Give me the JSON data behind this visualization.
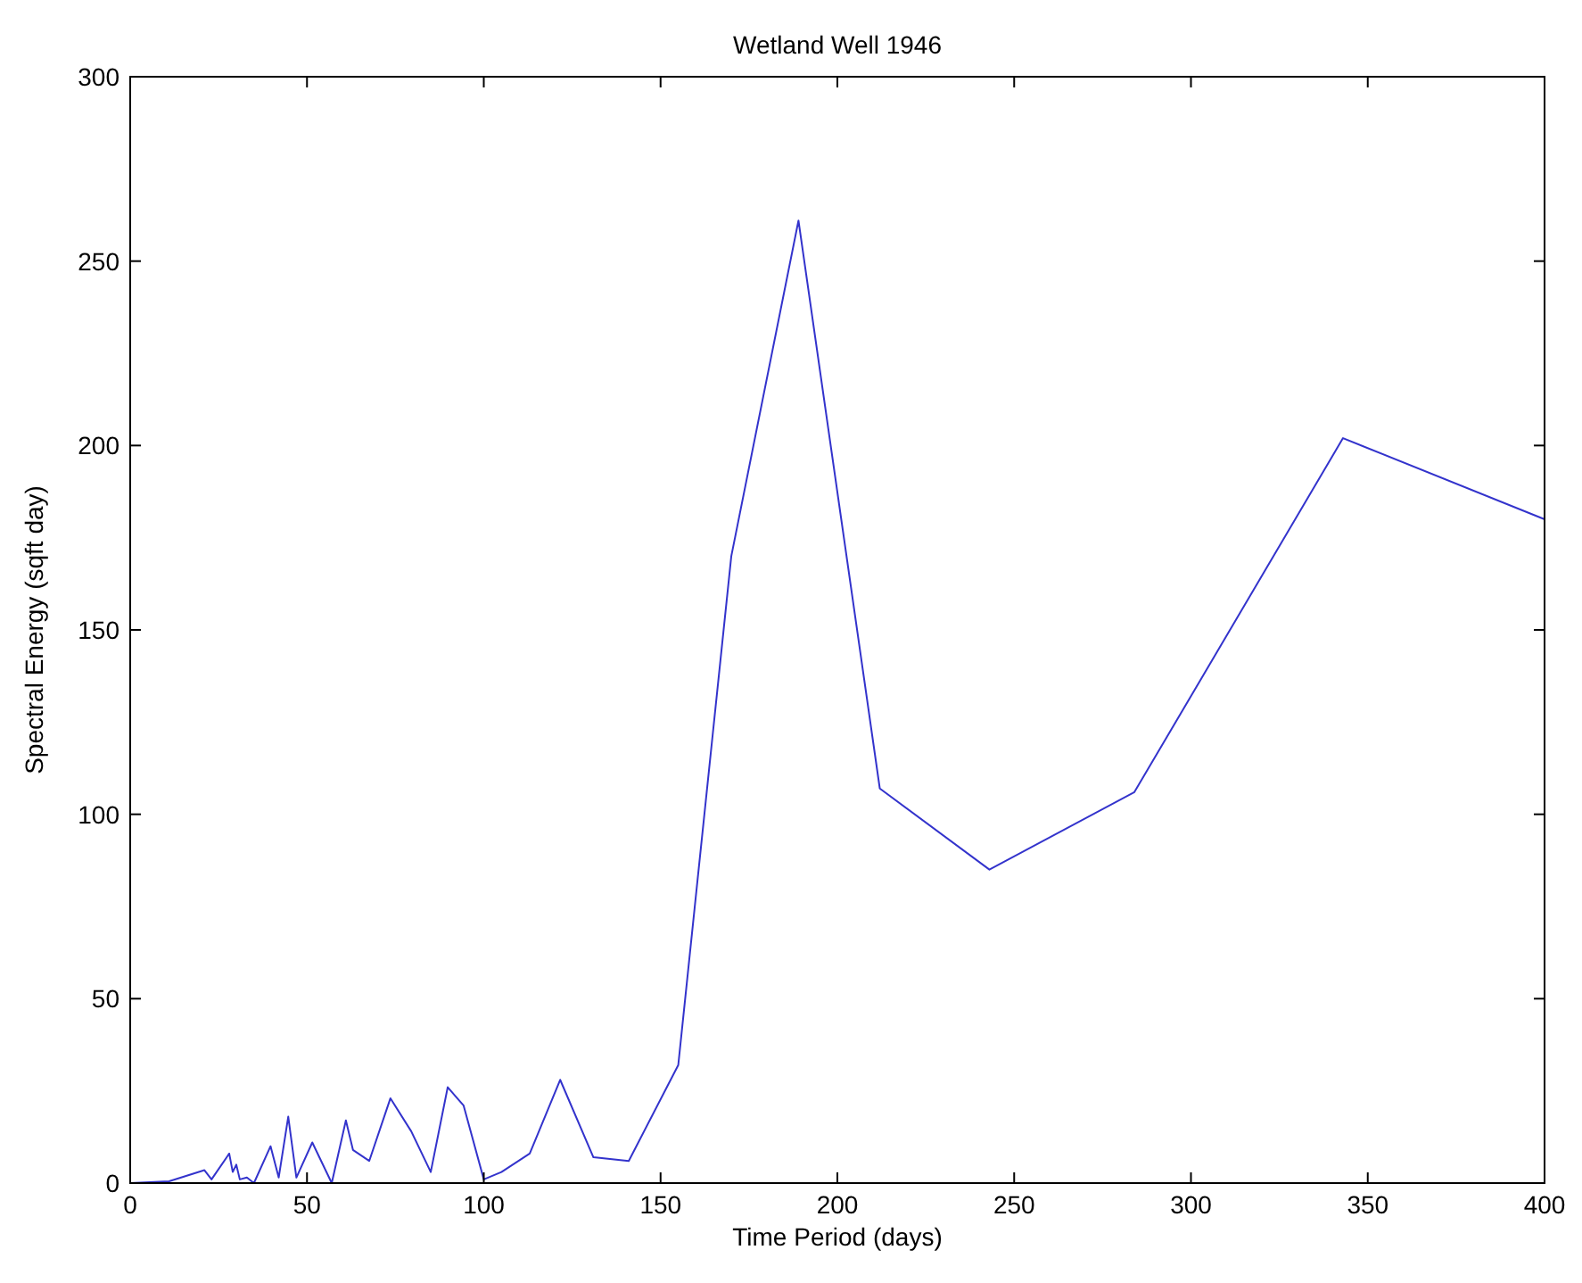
{
  "chart_data": {
    "type": "line",
    "title": "Wetland Well 1946",
    "xlabel": "Time Period (days)",
    "ylabel": "Spectral Energy (sqft day)",
    "xlim": [
      0,
      400
    ],
    "ylim": [
      0,
      300
    ],
    "xticks": [
      0,
      50,
      100,
      150,
      200,
      250,
      300,
      350,
      400
    ],
    "yticks": [
      0,
      50,
      100,
      150,
      200,
      250,
      300
    ],
    "grid": false,
    "series": [
      {
        "color": "#3333cc",
        "x": [
          0,
          11,
          16,
          21,
          23,
          28,
          29,
          30,
          31,
          33,
          35,
          39.7,
          42,
          44.7,
          47,
          51.5,
          57,
          61,
          63,
          67.6,
          73.6,
          79.5,
          85,
          89.8,
          94.3,
          100,
          105,
          113,
          121.6,
          131,
          141,
          155,
          170,
          189,
          212,
          243,
          284,
          343,
          400
        ],
        "values": [
          0,
          0.5,
          2,
          3.5,
          1,
          8,
          3,
          5,
          1,
          1.5,
          0,
          10,
          1.5,
          18,
          1.5,
          11,
          0,
          17,
          9,
          6,
          23,
          14,
          3,
          26,
          21,
          1,
          3,
          8,
          28,
          7,
          6,
          32,
          170,
          261,
          107,
          85,
          106,
          202,
          180
        ]
      }
    ]
  }
}
